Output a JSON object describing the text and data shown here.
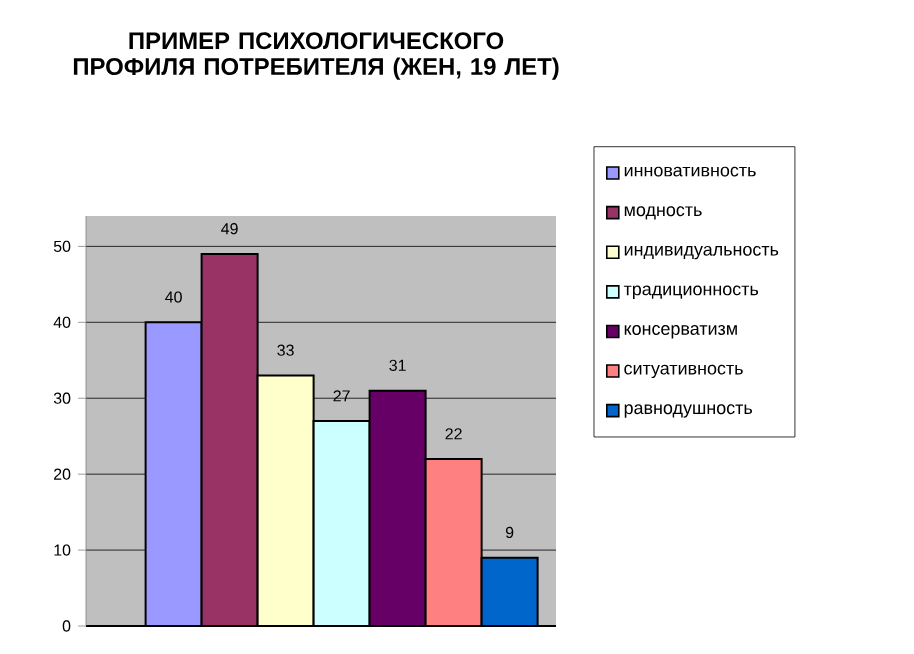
{
  "chart_data": {
    "type": "bar",
    "title": "ПРИМЕР ПСИХОЛОГИЧЕСКОГО ПРОФИЛЯ ПОТРЕБИТЕЛЯ (ЖЕН, 19 ЛЕТ)",
    "categories": [
      null
    ],
    "series": [
      {
        "name": "инновативность",
        "color": "#9999ff",
        "values": [
          40
        ]
      },
      {
        "name": "модность",
        "color": "#993366",
        "values": [
          49
        ]
      },
      {
        "name": "индивидуальность",
        "color": "#ffffcc",
        "values": [
          33
        ]
      },
      {
        "name": "традиционность",
        "color": "#ccffff",
        "values": [
          27
        ]
      },
      {
        "name": "консерватизм",
        "color": "#660066",
        "values": [
          31
        ]
      },
      {
        "name": "ситуативность",
        "color": "#ff8080",
        "values": [
          22
        ]
      },
      {
        "name": "равнодушность",
        "color": "#0066cc",
        "values": [
          9
        ]
      }
    ],
    "ylim": [
      0,
      54
    ],
    "yticks": [
      0,
      10,
      20,
      30,
      40,
      50
    ],
    "grid": "y",
    "legend": "right",
    "data_labels": true
  }
}
